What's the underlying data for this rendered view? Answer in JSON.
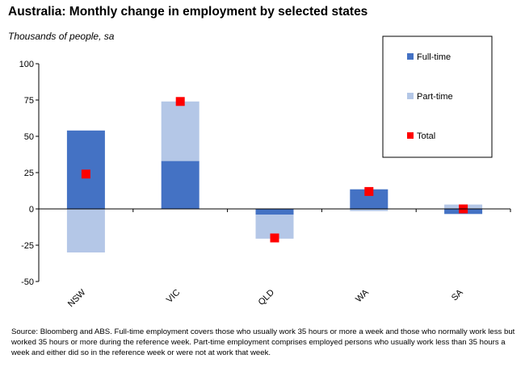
{
  "title": "Australia: Monthly change in employment by selected states",
  "subtitle": "Thousands of people, sa",
  "source": "Source: Bloomberg and ABS.  Full-time employment covers those who usually work 35 hours or more a week and those who normally work less but worked 35 hours or more during the reference week.  Part-time employment comprises employed persons who usually work less than 35 hours a week and either did so in the reference week or were not at work that week.",
  "colors": {
    "full_time": "#4472C4",
    "part_time": "#B4C7E7",
    "total": "#FF0000"
  },
  "chart_data": {
    "type": "bar",
    "stacked": true,
    "categories": [
      "NSW",
      "VIC",
      "QLD",
      "WA",
      "SA"
    ],
    "series": [
      {
        "name": "Full-time",
        "values": [
          54,
          33,
          -4,
          13.5,
          -3.5
        ]
      },
      {
        "name": "Part-time",
        "values": [
          -30,
          41,
          -16.5,
          -1.5,
          3
        ]
      },
      {
        "name": "Total",
        "values": [
          24,
          74,
          -20,
          12,
          0
        ]
      }
    ],
    "ylim": [
      -50,
      100
    ],
    "yticks": [
      100,
      75,
      50,
      25,
      0,
      -25,
      -50
    ],
    "grid": false,
    "legend_position": "top-right"
  }
}
